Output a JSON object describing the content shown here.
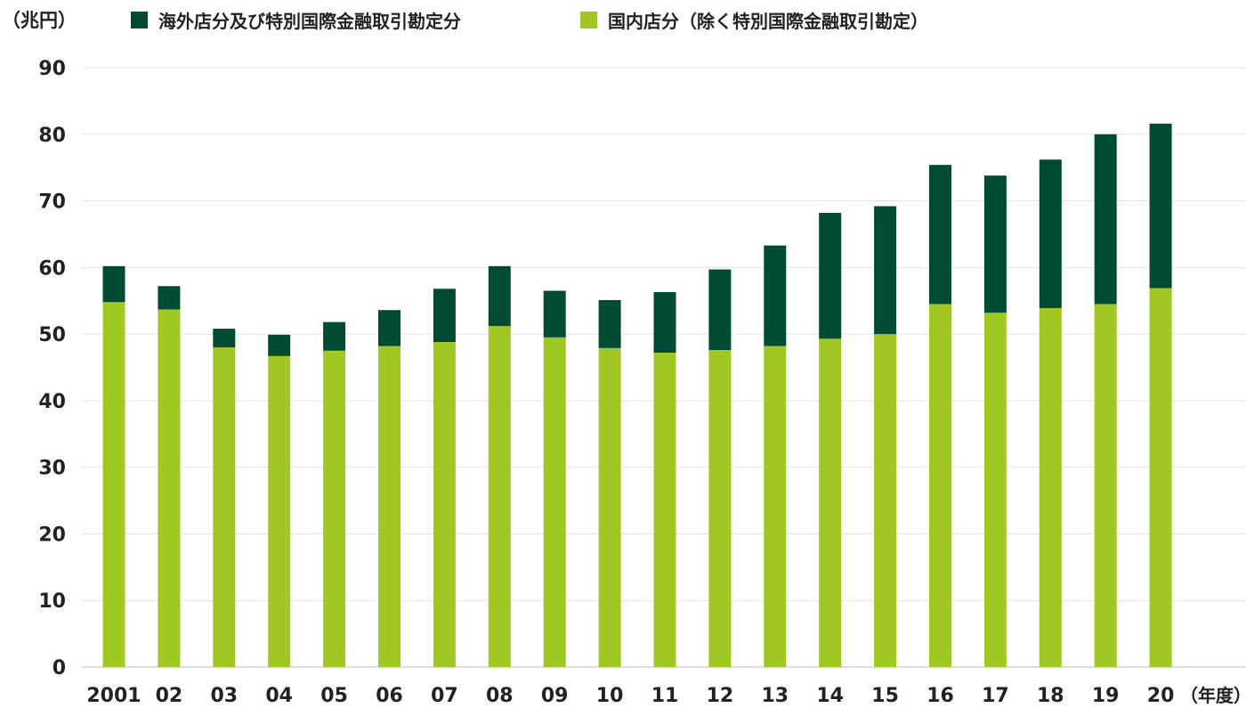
{
  "chart_data": {
    "type": "bar",
    "stacked": true,
    "title": "",
    "ylabel": "（兆円）",
    "xlabel": "（年度）",
    "ylim": [
      0,
      90
    ],
    "yticks": [
      0,
      10,
      20,
      30,
      40,
      50,
      60,
      70,
      80,
      90
    ],
    "grid": true,
    "legend_position": "top",
    "categories": [
      "2001",
      "02",
      "03",
      "04",
      "05",
      "06",
      "07",
      "08",
      "09",
      "10",
      "11",
      "12",
      "13",
      "14",
      "15",
      "16",
      "17",
      "18",
      "19",
      "20"
    ],
    "series": [
      {
        "name": "国内店分（除く特別国際金融取引勘定）",
        "color": "#a0c722",
        "values": [
          54.8,
          53.7,
          48.0,
          46.7,
          47.5,
          48.2,
          48.8,
          51.2,
          49.5,
          47.9,
          47.2,
          47.6,
          48.2,
          49.3,
          50.0,
          54.5,
          53.2,
          53.9,
          54.5,
          56.9
        ]
      },
      {
        "name": "海外店分及び特別国際金融取引勘定分",
        "color": "#004b33",
        "values": [
          5.4,
          3.5,
          2.8,
          3.2,
          4.3,
          5.4,
          8.0,
          9.0,
          7.0,
          7.2,
          9.1,
          12.1,
          15.1,
          18.9,
          19.2,
          20.9,
          20.6,
          22.3,
          25.5,
          24.7
        ]
      }
    ]
  }
}
